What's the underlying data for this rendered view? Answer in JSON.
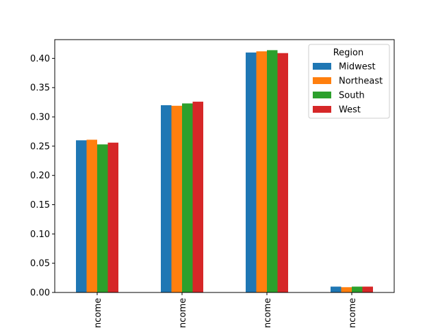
{
  "chart_data": {
    "type": "bar",
    "categories": [
      "ncome",
      "ncome",
      "ncome",
      "ncome"
    ],
    "series": [
      {
        "name": "Midwest",
        "values": [
          0.26,
          0.32,
          0.41,
          0.01
        ]
      },
      {
        "name": "Northeast",
        "values": [
          0.261,
          0.319,
          0.412,
          0.009
        ]
      },
      {
        "name": "South",
        "values": [
          0.253,
          0.323,
          0.414,
          0.01
        ]
      },
      {
        "name": "West",
        "values": [
          0.256,
          0.326,
          0.409,
          0.01
        ]
      }
    ],
    "colors": [
      "#1f77b4",
      "#ff7f0e",
      "#2ca02c",
      "#d62728"
    ],
    "title": "",
    "xlabel": "",
    "ylabel": "",
    "ylim": [
      0,
      0.432
    ],
    "yticks": [
      "0.00",
      "0.05",
      "0.10",
      "0.15",
      "0.20",
      "0.25",
      "0.30",
      "0.35",
      "0.40"
    ],
    "ytick_values": [
      0,
      0.05,
      0.1,
      0.15,
      0.2,
      0.25,
      0.3,
      0.35,
      0.4
    ],
    "grid": false,
    "legend": {
      "title": "Region",
      "placement": "top-right"
    }
  }
}
